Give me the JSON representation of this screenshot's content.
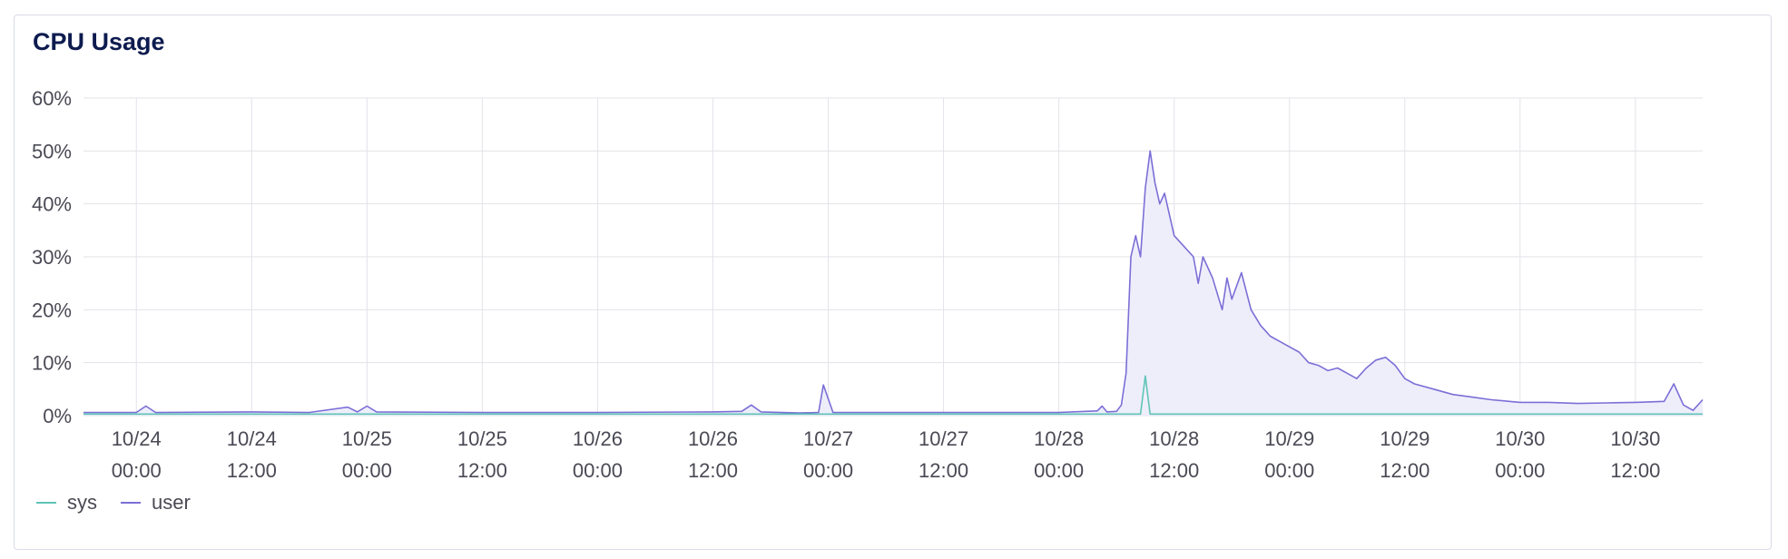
{
  "panel": {
    "title": "CPU Usage"
  },
  "chart_data": {
    "type": "area",
    "title": "CPU Usage",
    "xlabel": "",
    "ylabel": "",
    "y_unit": "%",
    "ylim": [
      0,
      60
    ],
    "yticks": [
      0,
      10,
      20,
      30,
      40,
      50,
      60
    ],
    "ytick_labels": [
      "0%",
      "10%",
      "20%",
      "30%",
      "40%",
      "50%",
      "60%"
    ],
    "xlim": [
      "10/23 18:30",
      "10/30 19:00"
    ],
    "xticks": [
      {
        "date": "10/24",
        "time": "00:00"
      },
      {
        "date": "10/24",
        "time": "12:00"
      },
      {
        "date": "10/25",
        "time": "00:00"
      },
      {
        "date": "10/25",
        "time": "12:00"
      },
      {
        "date": "10/26",
        "time": "00:00"
      },
      {
        "date": "10/26",
        "time": "12:00"
      },
      {
        "date": "10/27",
        "time": "00:00"
      },
      {
        "date": "10/27",
        "time": "12:00"
      },
      {
        "date": "10/28",
        "time": "00:00"
      },
      {
        "date": "10/28",
        "time": "12:00"
      },
      {
        "date": "10/29",
        "time": "00:00"
      },
      {
        "date": "10/29",
        "time": "12:00"
      },
      {
        "date": "10/30",
        "time": "00:00"
      },
      {
        "date": "10/30",
        "time": "12:00"
      }
    ],
    "grid": true,
    "legend_position": "bottom-left",
    "series": [
      {
        "name": "sys",
        "color": "#5ec4b6",
        "points": [
          [
            "10/23 18:30",
            0.3
          ],
          [
            "10/24 12:00",
            0.3
          ],
          [
            "10/25 12:00",
            0.3
          ],
          [
            "10/26 12:00",
            0.3
          ],
          [
            "10/27 12:00",
            0.3
          ],
          [
            "10/28 06:00",
            0.3
          ],
          [
            "10/28 08:30",
            0.3
          ],
          [
            "10/28 09:00",
            7.5
          ],
          [
            "10/28 09:30",
            0.3
          ],
          [
            "10/29 12:00",
            0.3
          ],
          [
            "10/30 19:00",
            0.3
          ]
        ]
      },
      {
        "name": "user",
        "color": "#7b6fd6",
        "fill": "#eeeefb",
        "points": [
          [
            "10/23 18:30",
            0.6
          ],
          [
            "10/24 00:00",
            0.6
          ],
          [
            "10/24 01:00",
            1.8
          ],
          [
            "10/24 02:00",
            0.6
          ],
          [
            "10/24 12:00",
            0.7
          ],
          [
            "10/24 18:00",
            0.6
          ],
          [
            "10/24 22:00",
            1.6
          ],
          [
            "10/24 23:00",
            0.7
          ],
          [
            "10/25 00:00",
            1.8
          ],
          [
            "10/25 01:00",
            0.7
          ],
          [
            "10/25 12:00",
            0.6
          ],
          [
            "10/26 00:00",
            0.6
          ],
          [
            "10/26 12:00",
            0.7
          ],
          [
            "10/26 15:00",
            0.8
          ],
          [
            "10/26 16:00",
            2.0
          ],
          [
            "10/26 17:00",
            0.7
          ],
          [
            "10/26 21:00",
            0.5
          ],
          [
            "10/26 23:00",
            0.6
          ],
          [
            "10/26 23:30",
            5.8
          ],
          [
            "10/27 00:30",
            0.6
          ],
          [
            "10/27 12:00",
            0.6
          ],
          [
            "10/28 00:00",
            0.6
          ],
          [
            "10/28 04:00",
            0.9
          ],
          [
            "10/28 04:30",
            1.8
          ],
          [
            "10/28 05:00",
            0.7
          ],
          [
            "10/28 06:00",
            0.8
          ],
          [
            "10/28 06:30",
            2.0
          ],
          [
            "10/28 07:00",
            8.0
          ],
          [
            "10/28 07:30",
            30.0
          ],
          [
            "10/28 08:00",
            34.0
          ],
          [
            "10/28 08:30",
            30.0
          ],
          [
            "10/28 09:00",
            43.0
          ],
          [
            "10/28 09:30",
            50.0
          ],
          [
            "10/28 10:00",
            44.0
          ],
          [
            "10/28 10:30",
            40.0
          ],
          [
            "10/28 11:00",
            42.0
          ],
          [
            "10/28 11:30",
            38.0
          ],
          [
            "10/28 12:00",
            34.0
          ],
          [
            "10/28 13:00",
            32.0
          ],
          [
            "10/28 14:00",
            30.0
          ],
          [
            "10/28 14:30",
            25.0
          ],
          [
            "10/28 15:00",
            30.0
          ],
          [
            "10/28 16:00",
            26.0
          ],
          [
            "10/28 17:00",
            20.0
          ],
          [
            "10/28 17:30",
            26.0
          ],
          [
            "10/28 18:00",
            22.0
          ],
          [
            "10/28 19:00",
            27.0
          ],
          [
            "10/28 20:00",
            20.0
          ],
          [
            "10/28 21:00",
            17.0
          ],
          [
            "10/28 22:00",
            15.0
          ],
          [
            "10/28 23:00",
            14.0
          ],
          [
            "10/29 00:00",
            13.0
          ],
          [
            "10/29 01:00",
            12.0
          ],
          [
            "10/29 02:00",
            10.0
          ],
          [
            "10/29 03:00",
            9.5
          ],
          [
            "10/29 04:00",
            8.5
          ],
          [
            "10/29 05:00",
            9.0
          ],
          [
            "10/29 06:00",
            8.0
          ],
          [
            "10/29 07:00",
            7.0
          ],
          [
            "10/29 08:00",
            9.0
          ],
          [
            "10/29 09:00",
            10.5
          ],
          [
            "10/29 10:00",
            11.0
          ],
          [
            "10/29 11:00",
            9.5
          ],
          [
            "10/29 12:00",
            7.0
          ],
          [
            "10/29 13:00",
            6.0
          ],
          [
            "10/29 15:00",
            5.0
          ],
          [
            "10/29 17:00",
            4.0
          ],
          [
            "10/29 19:00",
            3.5
          ],
          [
            "10/29 21:00",
            3.0
          ],
          [
            "10/30 00:00",
            2.5
          ],
          [
            "10/30 03:00",
            2.5
          ],
          [
            "10/30 06:00",
            2.3
          ],
          [
            "10/30 09:00",
            2.4
          ],
          [
            "10/30 12:00",
            2.5
          ],
          [
            "10/30 15:00",
            2.7
          ],
          [
            "10/30 16:00",
            6.0
          ],
          [
            "10/30 17:00",
            2.0
          ],
          [
            "10/30 18:00",
            1.0
          ],
          [
            "10/30 19:00",
            3.0
          ]
        ]
      }
    ]
  }
}
